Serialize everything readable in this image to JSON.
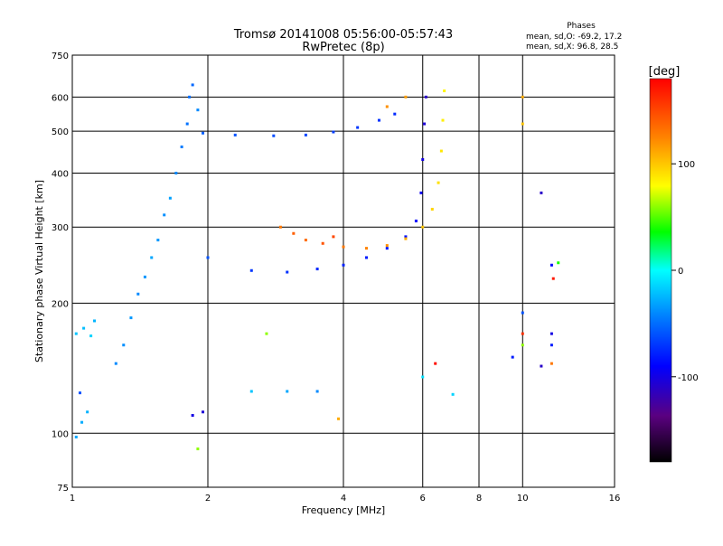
{
  "chart_data": {
    "type": "scatter",
    "title": "Tromsø 20141008 05:56:00-05:57:43",
    "subtitle": "RwPretec (8p)",
    "xlabel": "Frequency [MHz]",
    "ylabel": "Stationary phase Virtual Height [km]",
    "x_scale": "log",
    "y_scale": "log",
    "xlim": [
      1,
      16
    ],
    "ylim": [
      75,
      750
    ],
    "x_ticks": [
      1,
      2,
      4,
      6,
      8,
      10,
      16
    ],
    "y_ticks": [
      75,
      100,
      200,
      300,
      400,
      500,
      600,
      750
    ],
    "x_grid": [
      2,
      4,
      6,
      8,
      10
    ],
    "y_grid": [
      100,
      200,
      300,
      400,
      500,
      600
    ],
    "colorbar": {
      "title": "[deg]",
      "range": [
        -180,
        180
      ],
      "ticks": [
        100,
        0,
        -100
      ]
    },
    "stats": {
      "heading": "Phases",
      "line1": "mean, sd,O: -69.2, 17.2",
      "line2": "mean, sd,X:  96.8, 28.5"
    },
    "series": [
      {
        "points": [
          [
            1.02,
            170,
            -20
          ],
          [
            1.06,
            175,
            -22
          ],
          [
            1.1,
            168,
            -15
          ],
          [
            1.12,
            182,
            -25
          ],
          [
            1.02,
            98,
            -30
          ],
          [
            1.05,
            106,
            -28
          ],
          [
            1.08,
            112,
            -26
          ],
          [
            1.04,
            124,
            -60
          ],
          [
            1.25,
            145,
            -40
          ],
          [
            1.3,
            160,
            -38
          ],
          [
            1.35,
            185,
            -35
          ],
          [
            1.4,
            210,
            -40
          ],
          [
            1.45,
            230,
            -36
          ],
          [
            1.5,
            255,
            -30
          ],
          [
            1.55,
            280,
            -35
          ],
          [
            1.6,
            320,
            -38
          ],
          [
            1.65,
            350,
            -32
          ],
          [
            1.7,
            400,
            -40
          ],
          [
            1.75,
            460,
            -45
          ],
          [
            1.8,
            520,
            -48
          ],
          [
            1.82,
            600,
            -50
          ],
          [
            1.85,
            640,
            -52
          ],
          [
            1.9,
            560,
            -40
          ],
          [
            1.95,
            495,
            -55
          ],
          [
            2.3,
            490,
            -60
          ],
          [
            2.8,
            488,
            -62
          ],
          [
            3.3,
            490,
            -65
          ],
          [
            3.8,
            498,
            -68
          ],
          [
            4.3,
            510,
            -70
          ],
          [
            4.8,
            530,
            -72
          ],
          [
            5.2,
            548,
            -75
          ],
          [
            2.0,
            255,
            -60
          ],
          [
            2.5,
            238,
            -70
          ],
          [
            3.0,
            236,
            -72
          ],
          [
            3.5,
            240,
            -75
          ],
          [
            4.0,
            245,
            -78
          ],
          [
            4.5,
            255,
            -80
          ],
          [
            5.0,
            268,
            -82
          ],
          [
            5.5,
            285,
            -85
          ],
          [
            5.8,
            310,
            -90
          ],
          [
            5.95,
            360,
            -95
          ],
          [
            6.0,
            430,
            -100
          ],
          [
            6.05,
            520,
            -105
          ],
          [
            6.1,
            600,
            -110
          ],
          [
            1.85,
            110,
            -100
          ],
          [
            1.95,
            112,
            -105
          ]
        ]
      },
      {
        "points": [
          [
            2.9,
            300,
            130
          ],
          [
            3.1,
            290,
            140
          ],
          [
            3.3,
            280,
            135
          ],
          [
            3.6,
            275,
            145
          ],
          [
            4.0,
            270,
            130
          ],
          [
            4.5,
            268,
            125
          ],
          [
            5.0,
            272,
            120
          ],
          [
            5.5,
            282,
            110
          ],
          [
            6.0,
            300,
            100
          ],
          [
            6.3,
            330,
            95
          ],
          [
            6.5,
            380,
            90
          ],
          [
            6.6,
            450,
            88
          ],
          [
            6.65,
            530,
            85
          ],
          [
            6.7,
            620,
            82
          ],
          [
            5.0,
            570,
            120
          ],
          [
            5.5,
            600,
            115
          ],
          [
            10.0,
            600,
            110
          ],
          [
            10.0,
            520,
            100
          ],
          [
            3.8,
            285,
            150
          ]
        ]
      },
      {
        "points": [
          [
            2.7,
            170,
            60
          ],
          [
            2.5,
            125,
            -20
          ],
          [
            3.0,
            125,
            -30
          ],
          [
            3.5,
            125,
            -40
          ],
          [
            3.9,
            108,
            110
          ],
          [
            6.0,
            135,
            -10
          ],
          [
            6.4,
            145,
            175
          ],
          [
            7.0,
            123,
            -15
          ],
          [
            9.5,
            150,
            -80
          ],
          [
            10.0,
            190,
            -60
          ],
          [
            10.0,
            170,
            160
          ],
          [
            10.0,
            160,
            60
          ],
          [
            11.0,
            360,
            -110
          ],
          [
            11.6,
            245,
            -90
          ],
          [
            11.7,
            228,
            170
          ],
          [
            11.6,
            170,
            -100
          ],
          [
            11.6,
            160,
            -80
          ],
          [
            11.6,
            145,
            130
          ],
          [
            11.0,
            143,
            -110
          ],
          [
            12.0,
            248,
            40
          ],
          [
            1.9,
            92,
            60
          ]
        ]
      }
    ]
  }
}
